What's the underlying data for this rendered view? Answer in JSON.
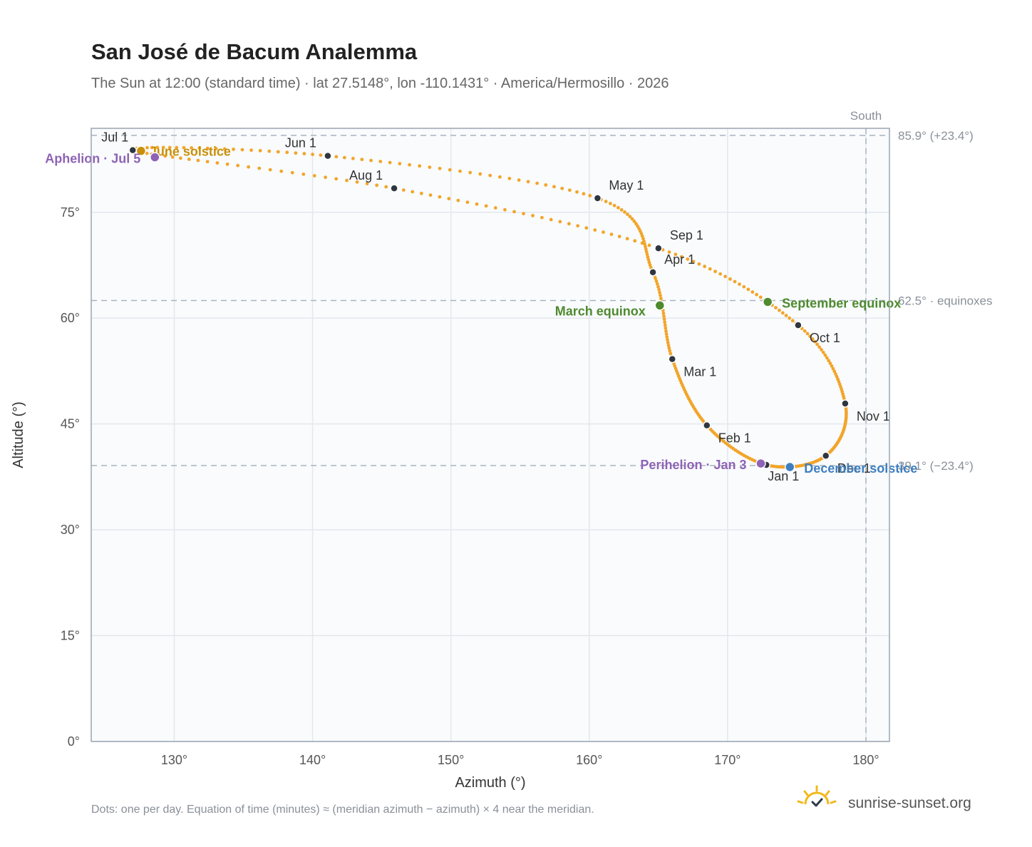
{
  "chart_data": {
    "type": "scatter",
    "title": "San José de Bacum Analemma",
    "subtitle": "The Sun at 12:00 (standard time) · lat 27.5148°, lon -110.1431° · America/Hermosillo · 2026",
    "xlabel": "Azimuth (°)",
    "ylabel": "Altitude (°)",
    "xlim": [
      124,
      181.7
    ],
    "ylim": [
      0,
      86.9
    ],
    "x_ticks": [
      130,
      140,
      150,
      160,
      170,
      180
    ],
    "x_tick_labels": [
      "130°",
      "140°",
      "150°",
      "160°",
      "170°",
      "180°"
    ],
    "y_ticks": [
      0,
      15,
      30,
      45,
      60,
      75
    ],
    "y_tick_labels": [
      "0°",
      "15°",
      "30°",
      "45°",
      "60°",
      "75°"
    ],
    "grid": true,
    "meridian": {
      "azimuth": 180,
      "label": "South"
    },
    "reference_lines": [
      {
        "altitude": 85.9,
        "label": "85.9° (+23.4°)"
      },
      {
        "altitude": 62.5,
        "label": "62.5° · equinoxes"
      },
      {
        "altitude": 39.1,
        "label": "39.1° (−23.4°)"
      }
    ],
    "path_note": "Dots: one per day",
    "month_points": [
      {
        "label": "Jan 1",
        "az": 172.8,
        "alt": 39.2
      },
      {
        "label": "Feb 1",
        "az": 168.5,
        "alt": 44.8
      },
      {
        "label": "Mar 1",
        "az": 166.0,
        "alt": 54.2
      },
      {
        "label": "Apr 1",
        "az": 164.6,
        "alt": 66.5
      },
      {
        "label": "May 1",
        "az": 160.6,
        "alt": 77.0
      },
      {
        "label": "Jun 1",
        "az": 141.1,
        "alt": 83.0
      },
      {
        "label": "Jul 1",
        "az": 127.0,
        "alt": 83.8
      },
      {
        "label": "Aug 1",
        "az": 145.9,
        "alt": 78.4
      },
      {
        "label": "Sep 1",
        "az": 165.0,
        "alt": 69.9
      },
      {
        "label": "Oct 1",
        "az": 175.1,
        "alt": 59.0
      },
      {
        "label": "Nov 1",
        "az": 178.5,
        "alt": 47.9
      },
      {
        "label": "Dec 1",
        "az": 177.1,
        "alt": 40.5
      }
    ],
    "events": [
      {
        "label": "June solstice",
        "az": 127.6,
        "alt": 83.7,
        "color": "#c8900a"
      },
      {
        "label": "Aphelion · Jul 5",
        "az": 128.6,
        "alt": 82.8,
        "color": "#8e63b5"
      },
      {
        "label": "March equinox",
        "az": 165.1,
        "alt": 61.8,
        "color": "#4e8a2e"
      },
      {
        "label": "September equinox",
        "az": 172.9,
        "alt": 62.3,
        "color": "#4e8a2e"
      },
      {
        "label": "Perihelion · Jan 3",
        "az": 172.4,
        "alt": 39.4,
        "color": "#8e63b5"
      },
      {
        "label": "December solstice",
        "az": 174.5,
        "alt": 38.9,
        "color": "#3f7fc1"
      }
    ],
    "path_color": "#f2a52a"
  },
  "footer": {
    "note": "Dots: one per day. Equation of time (minutes) ≈ (meridian azimuth − azimuth) × 4 near the meridian.",
    "brand": "sunrise-sunset.org"
  },
  "icons": {
    "brand": "sun-logo-icon"
  }
}
